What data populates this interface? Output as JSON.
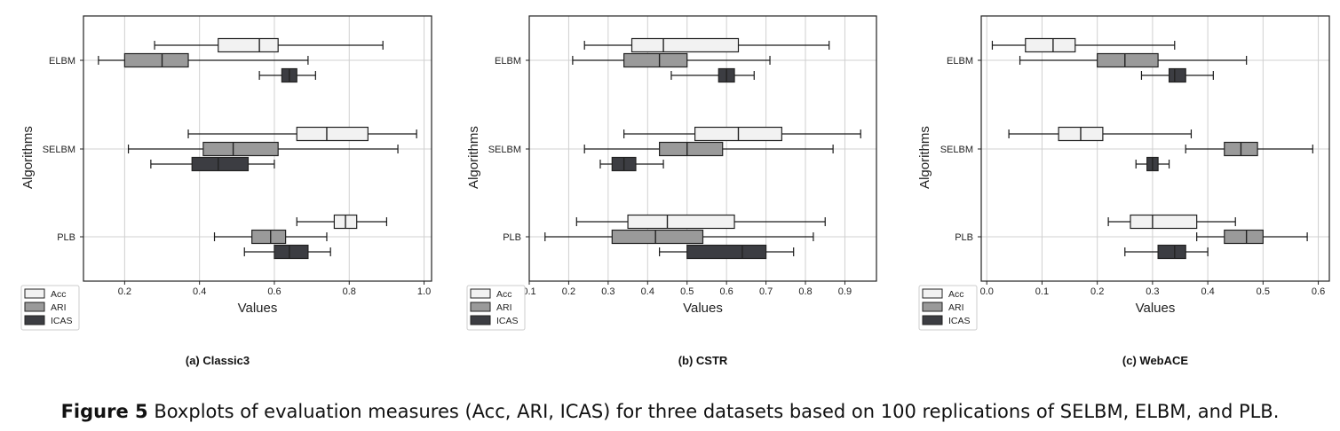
{
  "figure": {
    "label": "Figure 5",
    "caption": "Boxplots of evaluation measures (Acc, ARI, ICAS) for three datasets based on 100 replications of SELBM, ELBM, and PLB."
  },
  "colors": {
    "Acc": "#f2f2f2",
    "ARI": "#9a9a9a",
    "ICAS": "#3c3d42",
    "whisker": "#1a1a1a",
    "grid": "#d0d0d0"
  },
  "chart_data": [
    {
      "type": "boxplot",
      "subtitle": "(a) Classic3",
      "xlabel": "Values",
      "ylabel": "Algorithms",
      "xlim": [
        0.09,
        1.02
      ],
      "xticks": [
        0.2,
        0.4,
        0.6,
        0.8,
        1.0
      ],
      "xtick_labels": [
        "0.2",
        "0.4",
        "0.6",
        "0.8",
        "1.0"
      ],
      "categories": [
        "ELBM",
        "SELBM",
        "PLB"
      ],
      "grid": true,
      "legend_position": "lower-left, outside",
      "series": [
        {
          "name": "Acc",
          "boxes": [
            {
              "min": 0.28,
              "q1": 0.45,
              "median": 0.56,
              "q3": 0.61,
              "max": 0.89
            },
            {
              "min": 0.37,
              "q1": 0.66,
              "median": 0.74,
              "q3": 0.85,
              "max": 0.98
            },
            {
              "min": 0.66,
              "q1": 0.76,
              "median": 0.79,
              "q3": 0.82,
              "max": 0.9
            }
          ]
        },
        {
          "name": "ARI",
          "boxes": [
            {
              "min": 0.13,
              "q1": 0.2,
              "median": 0.3,
              "q3": 0.37,
              "max": 0.69
            },
            {
              "min": 0.21,
              "q1": 0.41,
              "median": 0.49,
              "q3": 0.61,
              "max": 0.93
            },
            {
              "min": 0.44,
              "q1": 0.54,
              "median": 0.59,
              "q3": 0.63,
              "max": 0.74
            }
          ]
        },
        {
          "name": "ICAS",
          "boxes": [
            {
              "min": 0.56,
              "q1": 0.62,
              "median": 0.64,
              "q3": 0.66,
              "max": 0.71
            },
            {
              "min": 0.27,
              "q1": 0.38,
              "median": 0.45,
              "q3": 0.53,
              "max": 0.6
            },
            {
              "min": 0.52,
              "q1": 0.6,
              "median": 0.64,
              "q3": 0.69,
              "max": 0.75
            }
          ]
        }
      ]
    },
    {
      "type": "boxplot",
      "subtitle": "(b) CSTR",
      "xlabel": "Values",
      "ylabel": "Algorithms",
      "xlim": [
        0.1,
        0.98
      ],
      "xticks": [
        0.1,
        0.2,
        0.3,
        0.4,
        0.5,
        0.6,
        0.7,
        0.8,
        0.9
      ],
      "xtick_labels": [
        "0.1",
        "0.2",
        "0.3",
        "0.4",
        "0.5",
        "0.6",
        "0.7",
        "0.8",
        "0.9"
      ],
      "categories": [
        "ELBM",
        "SELBM",
        "PLB"
      ],
      "grid": true,
      "legend_position": "lower-left, outside",
      "series": [
        {
          "name": "Acc",
          "boxes": [
            {
              "min": 0.24,
              "q1": 0.36,
              "median": 0.44,
              "q3": 0.63,
              "max": 0.86
            },
            {
              "min": 0.34,
              "q1": 0.52,
              "median": 0.63,
              "q3": 0.74,
              "max": 0.94
            },
            {
              "min": 0.22,
              "q1": 0.35,
              "median": 0.45,
              "q3": 0.62,
              "max": 0.85
            }
          ]
        },
        {
          "name": "ARI",
          "boxes": [
            {
              "min": 0.21,
              "q1": 0.34,
              "median": 0.43,
              "q3": 0.5,
              "max": 0.71
            },
            {
              "min": 0.24,
              "q1": 0.43,
              "median": 0.5,
              "q3": 0.59,
              "max": 0.87
            },
            {
              "min": 0.14,
              "q1": 0.31,
              "median": 0.42,
              "q3": 0.54,
              "max": 0.82
            }
          ]
        },
        {
          "name": "ICAS",
          "boxes": [
            {
              "min": 0.46,
              "q1": 0.58,
              "median": 0.6,
              "q3": 0.62,
              "max": 0.67
            },
            {
              "min": 0.28,
              "q1": 0.31,
              "median": 0.34,
              "q3": 0.37,
              "max": 0.44
            },
            {
              "min": 0.43,
              "q1": 0.5,
              "median": 0.64,
              "q3": 0.7,
              "max": 0.77
            }
          ]
        }
      ]
    },
    {
      "type": "boxplot",
      "subtitle": "(c) WebACE",
      "xlabel": "Values",
      "ylabel": "Algorithms",
      "xlim": [
        -0.01,
        0.62
      ],
      "xticks": [
        0.0,
        0.1,
        0.2,
        0.3,
        0.4,
        0.5,
        0.6
      ],
      "xtick_labels": [
        "0.0",
        "0.1",
        "0.2",
        "0.3",
        "0.4",
        "0.5",
        "0.6"
      ],
      "categories": [
        "ELBM",
        "SELBM",
        "PLB"
      ],
      "grid": true,
      "legend_position": "lower-left, outside",
      "series": [
        {
          "name": "Acc",
          "boxes": [
            {
              "min": 0.01,
              "q1": 0.07,
              "median": 0.12,
              "q3": 0.16,
              "max": 0.34
            },
            {
              "min": 0.04,
              "q1": 0.13,
              "median": 0.17,
              "q3": 0.21,
              "max": 0.37
            },
            {
              "min": 0.22,
              "q1": 0.26,
              "median": 0.3,
              "q3": 0.38,
              "max": 0.45
            }
          ]
        },
        {
          "name": "ARI",
          "boxes": [
            {
              "min": 0.06,
              "q1": 0.2,
              "median": 0.25,
              "q3": 0.31,
              "max": 0.47
            },
            {
              "min": 0.36,
              "q1": 0.43,
              "median": 0.46,
              "q3": 0.49,
              "max": 0.59
            },
            {
              "min": 0.38,
              "q1": 0.43,
              "median": 0.47,
              "q3": 0.5,
              "max": 0.58
            }
          ]
        },
        {
          "name": "ICAS",
          "boxes": [
            {
              "min": 0.28,
              "q1": 0.33,
              "median": 0.34,
              "q3": 0.36,
              "max": 0.41
            },
            {
              "min": 0.27,
              "q1": 0.29,
              "median": 0.3,
              "q3": 0.31,
              "max": 0.33
            },
            {
              "min": 0.25,
              "q1": 0.31,
              "median": 0.34,
              "q3": 0.36,
              "max": 0.4
            }
          ]
        }
      ]
    }
  ]
}
